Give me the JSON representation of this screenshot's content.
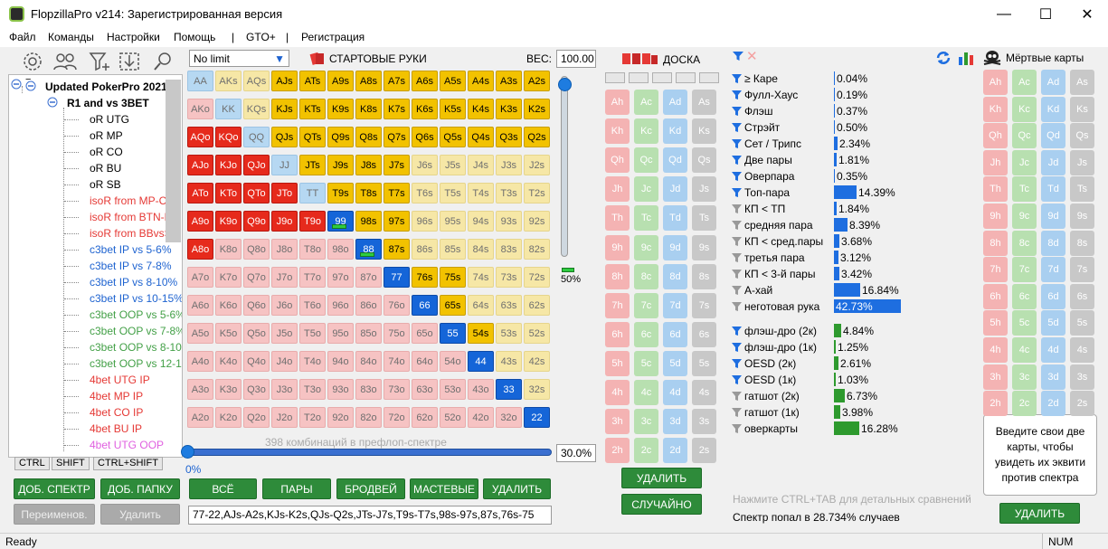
{
  "window": {
    "title": "FlopzillaPro v214: Зарегистрированная версия",
    "minimize": "—",
    "maximize": "☐",
    "close": "✕"
  },
  "menu": [
    "Файл",
    "Команды",
    "Настройки",
    "Помощь",
    "|",
    "GTO+",
    "|",
    "Регистрация"
  ],
  "toolbar_icons": [
    "gear-icon",
    "users-icon",
    "filter-add-icon",
    "import-icon",
    "search-icon"
  ],
  "tree": {
    "root": "Updated PokerPro 2021",
    "group": "R1 and vs 3BET",
    "items": [
      {
        "label": "oR UTG",
        "color": "#000000"
      },
      {
        "label": "oR MP",
        "color": "#000000"
      },
      {
        "label": "oR CO",
        "color": "#000000"
      },
      {
        "label": "oR BU",
        "color": "#000000"
      },
      {
        "label": "oR SB",
        "color": "#000000"
      },
      {
        "label": "isoR from MP-CO",
        "color": "#e53935"
      },
      {
        "label": "isoR from BTN-BB",
        "color": "#e53935"
      },
      {
        "label": "isoR from BBvsSB",
        "color": "#e53935"
      },
      {
        "label": "c3bet IP vs 5-6%",
        "color": "#1e63d0"
      },
      {
        "label": "c3bet IP vs 7-8%",
        "color": "#1e63d0"
      },
      {
        "label": "c3bet IP vs 8-10%",
        "color": "#1e63d0"
      },
      {
        "label": "c3bet IP vs 10-15%",
        "color": "#1e63d0"
      },
      {
        "label": "c3bet OOP vs 5-6%",
        "color": "#43a047"
      },
      {
        "label": "c3bet OOP vs 7-8%",
        "color": "#43a047"
      },
      {
        "label": "c3bet OOP vs 8-10%",
        "color": "#43a047"
      },
      {
        "label": "c3bet OOP vs 12-15%",
        "color": "#43a047"
      },
      {
        "label": "4bet UTG IP",
        "color": "#e53935"
      },
      {
        "label": "4bet MP IP",
        "color": "#e53935"
      },
      {
        "label": "4bet CO IP",
        "color": "#e53935"
      },
      {
        "label": "4bet BU IP",
        "color": "#e53935"
      },
      {
        "label": "4bet UTG OOP",
        "color": "#e060e0"
      }
    ]
  },
  "tabs": [
    "CTRL",
    "SHIFT",
    "CTRL+SHIFT"
  ],
  "left_buttons": {
    "add_range": "ДОБ. СПЕКТР",
    "add_folder": "ДОБ. ПАПКУ",
    "rename": "Переименов.",
    "delete": "Удалить"
  },
  "range": {
    "mode": "No limit",
    "title": "СТАРТОВЫЕ РУКИ",
    "weight_label": "ВЕС:",
    "weight": "100.00",
    "slider_pct": "50%",
    "combos_text": "398 комбинаций в префлоп-спектре",
    "hslider_left": "0%",
    "hslider_right": "30.0%",
    "selected_fraction": 0.3,
    "text": "77-22,AJs-A2s,KJs-K2s,QJs-Q2s,JTs-J7s,T9s-T7s,98s-97s,87s,76s-75",
    "buttons": [
      "ВСЁ",
      "ПАРЫ",
      "БРОДВЕЙ",
      "МАСТЕВЫЕ",
      "УДАЛИТЬ"
    ],
    "ranks": [
      "A",
      "K",
      "Q",
      "J",
      "T",
      "9",
      "8",
      "7",
      "6",
      "5",
      "4",
      "3",
      "2"
    ],
    "selected": [
      "AJs",
      "ATs",
      "A9s",
      "A8s",
      "A7s",
      "A6s",
      "A5s",
      "A4s",
      "A3s",
      "A2s",
      "KJs",
      "KTs",
      "K9s",
      "K8s",
      "K7s",
      "K6s",
      "K5s",
      "K4s",
      "K3s",
      "K2s",
      "QJs",
      "QTs",
      "Q9s",
      "Q8s",
      "Q7s",
      "Q6s",
      "Q5s",
      "Q4s",
      "Q3s",
      "Q2s",
      "JTs",
      "J9s",
      "J8s",
      "J7s",
      "T9s",
      "T8s",
      "T7s",
      "98s",
      "97s",
      "87s",
      "76s",
      "75s",
      "65s",
      "54s",
      "77",
      "66",
      "55",
      "44",
      "33",
      "22",
      "AQo",
      "KQo",
      "AJo",
      "KJo",
      "QJo",
      "ATo",
      "KTo",
      "QTo",
      "JTo",
      "A9o",
      "K9o",
      "Q9o",
      "J9o",
      "T9o",
      "A8o",
      "99",
      "88"
    ],
    "partial": [
      "99",
      "88"
    ]
  },
  "board": {
    "title": "ДОСКА",
    "ranks": [
      "A",
      "K",
      "Q",
      "J",
      "T",
      "9",
      "8",
      "7",
      "6",
      "5",
      "4",
      "3",
      "2"
    ],
    "suits": [
      "h",
      "c",
      "d",
      "s"
    ],
    "delete": "УДАЛИТЬ",
    "random": "СЛУЧАЙНО"
  },
  "stats": {
    "made": [
      {
        "label": "≥ Каре",
        "pct": "0.04%",
        "value": 0.04
      },
      {
        "label": "Фулл-Хаус",
        "pct": "0.19%",
        "value": 0.19
      },
      {
        "label": "Флэш",
        "pct": "0.37%",
        "value": 0.37
      },
      {
        "label": "Стрэйт",
        "pct": "0.50%",
        "value": 0.5
      },
      {
        "label": "Сет / Трипс",
        "pct": "2.34%",
        "value": 2.34
      },
      {
        "label": "Две пары",
        "pct": "1.81%",
        "value": 1.81
      },
      {
        "label": "Оверпара",
        "pct": "0.35%",
        "value": 0.35
      },
      {
        "label": "Топ-пара",
        "pct": "14.39%",
        "value": 14.39
      },
      {
        "label": "КП < ТП",
        "pct": "1.84%",
        "value": 1.84
      },
      {
        "label": "средняя пара",
        "pct": "8.39%",
        "value": 8.39
      },
      {
        "label": "КП < сред.пары",
        "pct": "3.68%",
        "value": 3.68
      },
      {
        "label": "третья пара",
        "pct": "3.12%",
        "value": 3.12
      },
      {
        "label": "КП < 3-й пары",
        "pct": "3.42%",
        "value": 3.42
      },
      {
        "label": "А-хай",
        "pct": "16.84%",
        "value": 16.84
      },
      {
        "label": "неготовая рука",
        "pct": "42.73%",
        "value": 42.73
      }
    ],
    "draws": [
      {
        "label": "флэш-дро (2к)",
        "pct": "4.84%",
        "value": 4.84
      },
      {
        "label": "флэш-дро (1к)",
        "pct": "1.25%",
        "value": 1.25
      },
      {
        "label": "OESD (2к)",
        "pct": "2.61%",
        "value": 2.61
      },
      {
        "label": "OESD (1к)",
        "pct": "1.03%",
        "value": 1.03
      },
      {
        "label": "гатшот (2к)",
        "pct": "6.73%",
        "value": 6.73
      },
      {
        "label": "гатшот (1к)",
        "pct": "3.98%",
        "value": 3.98
      },
      {
        "label": "оверкарты",
        "pct": "16.28%",
        "value": 16.28
      }
    ],
    "hint": "Нажмите CTRL+TAB для детальных сравнений",
    "hit": "Спектр попал в 28.734% случаев"
  },
  "dead": {
    "title": "Мёртвые карты",
    "info": "Введите свои две карты, чтобы увидеть их эквити против спектра",
    "delete": "УДАЛИТЬ"
  },
  "status": {
    "left": "Ready",
    "right": "NUM"
  },
  "colors": {
    "made_bar": "#1e6ee0",
    "draw_bar": "#2e9a2e",
    "accent_green": "#2e8b3a"
  }
}
